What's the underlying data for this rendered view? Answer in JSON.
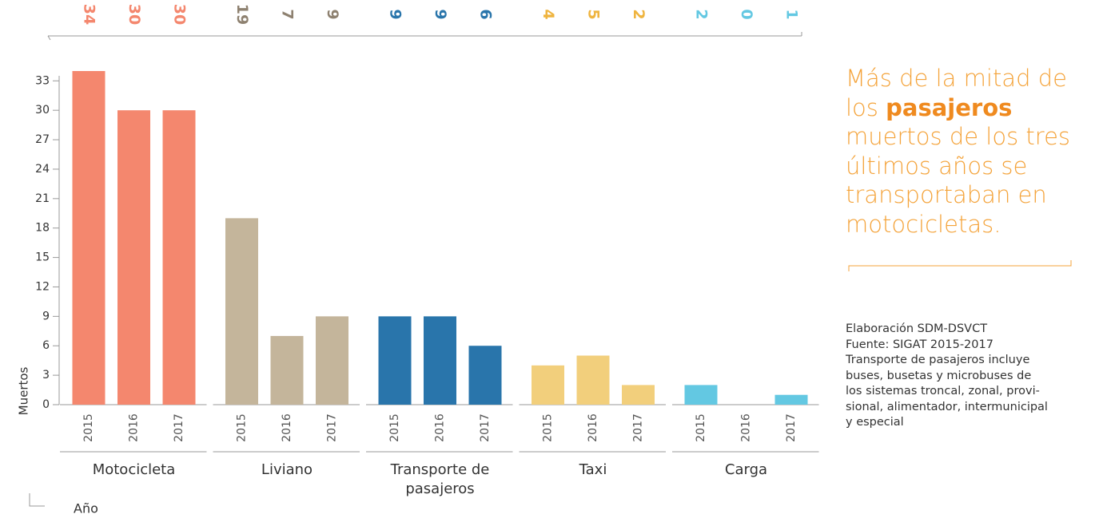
{
  "chart_data": {
    "type": "bar",
    "y_label": "Muertos",
    "x_label": "Año",
    "categories": [
      "2015",
      "2016",
      "2017"
    ],
    "series": [
      {
        "name": "Motocicleta",
        "color": "#f4876e",
        "label_color": "#f4876e",
        "values": [
          34,
          30,
          30
        ]
      },
      {
        "name": "Liviano",
        "color": "#c4b59b",
        "label_color": "#8e8170",
        "values": [
          19,
          7,
          9
        ]
      },
      {
        "name": "Transporte de pasajeros",
        "color": "#2975ab",
        "label_color": "#2975ab",
        "values": [
          9,
          9,
          6
        ]
      },
      {
        "name": "Taxi",
        "color": "#f2cf7c",
        "label_color": "#efb43f",
        "values": [
          4,
          5,
          2
        ]
      },
      {
        "name": "Carga",
        "color": "#63c8e2",
        "label_color": "#63c8e2",
        "values": [
          2,
          0,
          1
        ]
      }
    ],
    "ylim": [
      0,
      34
    ],
    "yticks": [
      0,
      3,
      6,
      9,
      12,
      15,
      18,
      21,
      24,
      27,
      30,
      33
    ],
    "annotation": {
      "before": "Más de la mitad de los",
      "highlight": "pasajeros",
      "after": "muertos de los tres últimos años se transportaban en motocicletas."
    },
    "notes": [
      "Elaboración SDM-DSVCT",
      "Fuente: SIGAT 2015-2017",
      "Transporte de pasajeros incluye",
      "buses, busetas y microbuses de",
      "los sistemas troncal, zonal, provi-",
      "sional, alimentador, intermunicipal",
      "y especial"
    ]
  }
}
